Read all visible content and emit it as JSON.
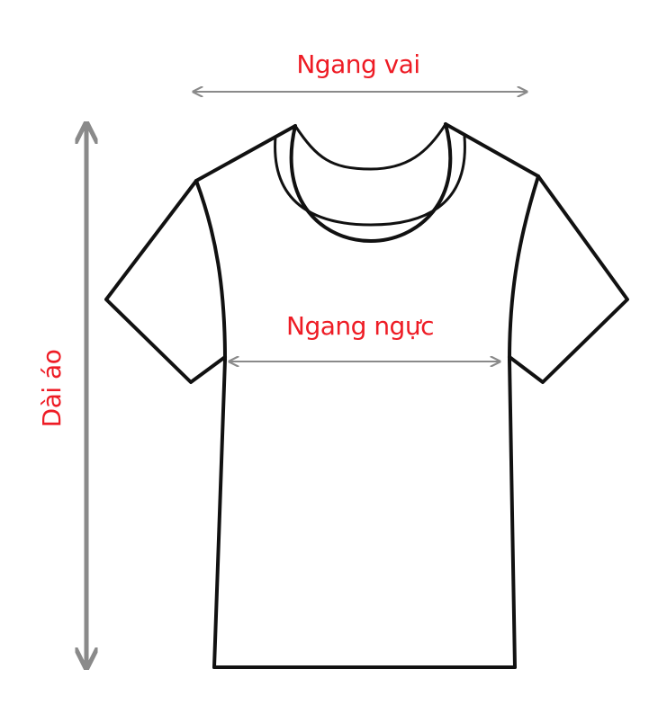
{
  "colors": {
    "label": "#ee1c25",
    "arrow": "#8a8a8a",
    "outline": "#111111",
    "background": "#ffffff"
  },
  "labels": {
    "shoulder_width": "Ngang vai",
    "chest_width": "Ngang ngực",
    "shirt_length": "Dài áo"
  }
}
